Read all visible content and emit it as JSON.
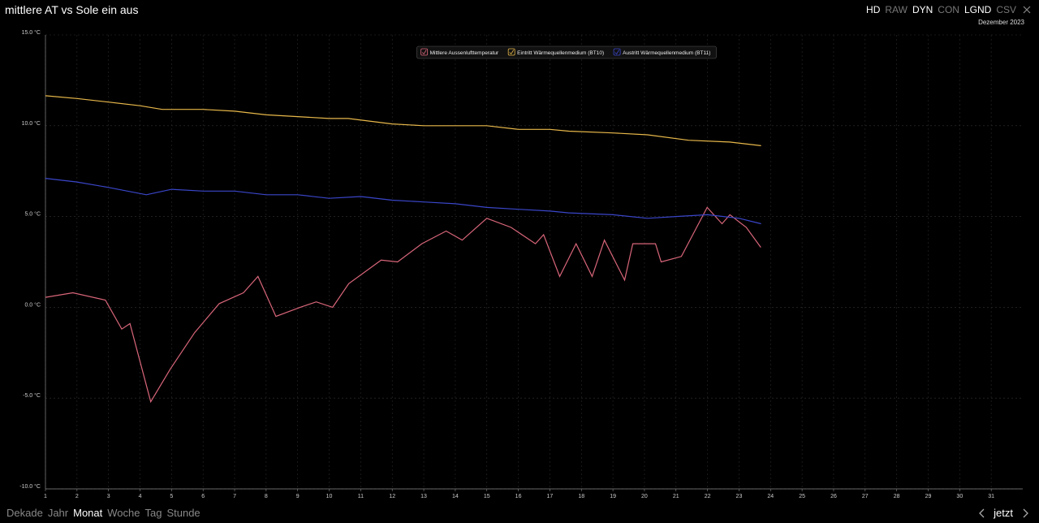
{
  "header": {
    "title": "mittlere AT vs Sole ein aus",
    "buttons": [
      {
        "label": "HD",
        "active": true
      },
      {
        "label": "RAW",
        "active": false
      },
      {
        "label": "DYN",
        "active": true
      },
      {
        "label": "CON",
        "active": false
      },
      {
        "label": "LGND",
        "active": true
      },
      {
        "label": "CSV",
        "active": false
      }
    ],
    "period": "Dezember 2023"
  },
  "chart_data": {
    "type": "line",
    "grid": true,
    "legend": "top",
    "xlim": [
      1,
      32
    ],
    "xticks": [
      1,
      2,
      3,
      4,
      5,
      6,
      7,
      8,
      9,
      10,
      11,
      12,
      13,
      14,
      15,
      16,
      17,
      18,
      19,
      20,
      21,
      22,
      23,
      24,
      25,
      26,
      27,
      28,
      29,
      30,
      31
    ],
    "ylim": [
      -10,
      15
    ],
    "yticks": [
      {
        "value": -10,
        "label": "-10.0 °C"
      },
      {
        "value": -5,
        "label": "-5.0 °C"
      },
      {
        "value": 0,
        "label": "0.0 °C"
      },
      {
        "value": 5,
        "label": "5.0 °C"
      },
      {
        "value": 10,
        "label": "10.0 °C"
      },
      {
        "value": 15,
        "label": "15.0 °C"
      }
    ],
    "series": [
      {
        "name": "Mittlere Aussenlufttemperatur",
        "color": "#d9667a",
        "x": [
          1.0,
          1.87,
          2.9,
          3.42,
          3.68,
          4.34,
          4.96,
          5.73,
          6.51,
          7.28,
          7.74,
          8.31,
          9.08,
          9.59,
          10.11,
          10.62,
          11.65,
          12.17,
          12.94,
          13.71,
          14.22,
          15.0,
          15.77,
          16.54,
          16.8,
          17.31,
          17.83,
          18.34,
          18.73,
          19.37,
          19.63,
          20.35,
          20.53,
          21.17,
          21.99,
          22.46,
          22.71,
          23.23,
          23.69
        ],
        "values": [
          0.55,
          0.8,
          0.4,
          -1.2,
          -0.9,
          -5.2,
          -3.4,
          -1.4,
          0.2,
          0.8,
          1.7,
          -0.5,
          0.0,
          0.3,
          0.0,
          1.3,
          2.6,
          2.5,
          3.5,
          4.2,
          3.7,
          4.9,
          4.4,
          3.5,
          4.0,
          1.7,
          3.5,
          1.7,
          3.7,
          1.5,
          3.5,
          3.5,
          2.5,
          2.8,
          5.5,
          4.6,
          5.1,
          4.4,
          3.3
        ]
      },
      {
        "name": "Eintritt Wärmequellenmedium (BT10)",
        "color": "#e8b84a",
        "x": [
          1,
          2,
          3,
          4,
          4.7,
          6,
          7,
          8,
          9,
          10,
          10.6,
          12,
          13,
          15,
          16,
          17,
          17.6,
          19,
          20.1,
          21.4,
          22.7,
          23.7
        ],
        "values": [
          11.65,
          11.5,
          11.3,
          11.1,
          10.9,
          10.9,
          10.8,
          10.6,
          10.5,
          10.4,
          10.4,
          10.1,
          10.0,
          10.0,
          9.8,
          9.8,
          9.7,
          9.6,
          9.5,
          9.2,
          9.1,
          8.9
        ]
      },
      {
        "name": "Austritt Wärmequellenmedium (BT11)",
        "color": "#3a46c9",
        "x": [
          1,
          2,
          3,
          4.2,
          5,
          6,
          7,
          8,
          9,
          10,
          11,
          12,
          13,
          14,
          15,
          16,
          17,
          17.6,
          19,
          20.1,
          21,
          22,
          23,
          23.7
        ],
        "values": [
          7.1,
          6.9,
          6.6,
          6.2,
          6.5,
          6.4,
          6.4,
          6.2,
          6.2,
          6.0,
          6.1,
          5.9,
          5.8,
          5.7,
          5.5,
          5.4,
          5.3,
          5.2,
          5.1,
          4.9,
          5.0,
          5.1,
          4.9,
          4.6
        ]
      }
    ]
  },
  "nav": {
    "ranges": [
      {
        "label": "Dekade",
        "active": false
      },
      {
        "label": "Jahr",
        "active": false
      },
      {
        "label": "Monat",
        "active": true
      },
      {
        "label": "Woche",
        "active": false
      },
      {
        "label": "Tag",
        "active": false
      },
      {
        "label": "Stunde",
        "active": false
      }
    ],
    "now": "jetzt"
  }
}
